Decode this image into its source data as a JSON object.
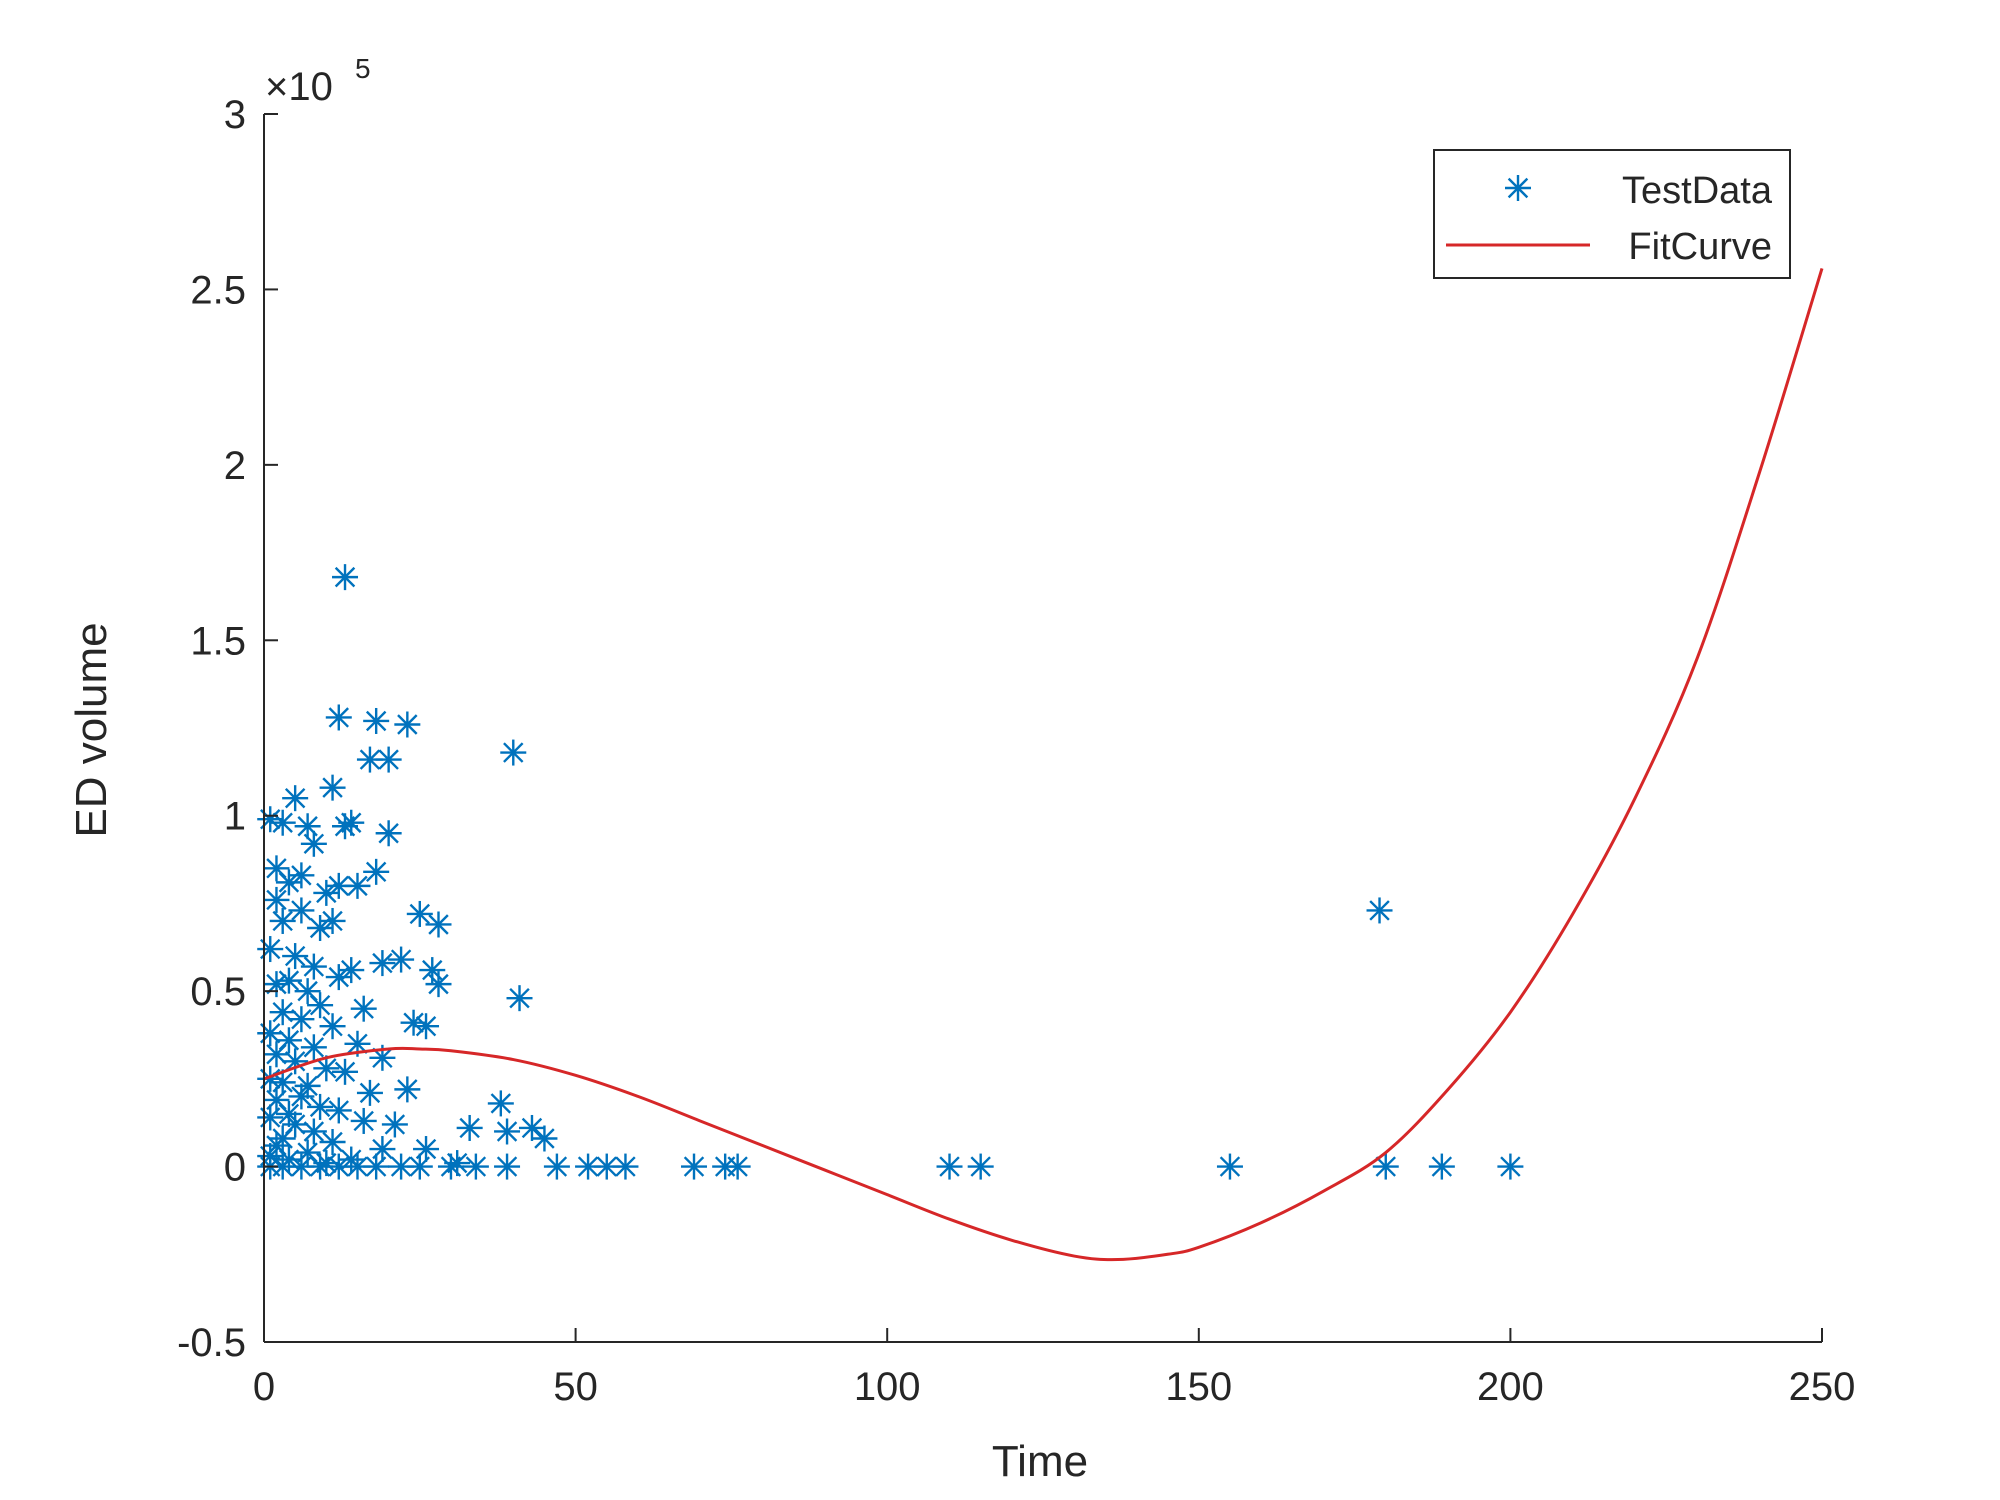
{
  "chart_data": {
    "type": "scatter",
    "title": "",
    "xlabel": "Time",
    "ylabel": "ED volume",
    "y_exponent_label": {
      "base": "×10",
      "exp": "5"
    },
    "xlim": [
      0,
      250
    ],
    "ylim": [
      -0.5,
      3
    ],
    "y_unit_multiplier": 100000,
    "grid": false,
    "legend": {
      "position": "top-right",
      "box": true
    },
    "x_ticks": [
      0,
      50,
      100,
      150,
      200,
      250
    ],
    "x_tick_labels": [
      "0",
      "50",
      "100",
      "150",
      "200",
      "250"
    ],
    "y_ticks": [
      -0.5,
      0,
      0.5,
      1,
      1.5,
      2,
      2.5,
      3
    ],
    "y_tick_labels": [
      "-0.5",
      "0",
      "0.5",
      "1",
      "1.5",
      "2",
      "2.5",
      "3"
    ],
    "series": [
      {
        "name": "TestData",
        "kind": "scatter",
        "marker": "asterisk",
        "color": "#0072bd",
        "points": [
          [
            13,
            1.68
          ],
          [
            12,
            1.28
          ],
          [
            18,
            1.27
          ],
          [
            23,
            1.26
          ],
          [
            40,
            1.18
          ],
          [
            17,
            1.16
          ],
          [
            20,
            1.16
          ],
          [
            11,
            1.08
          ],
          [
            5,
            1.05
          ],
          [
            1,
            0.99
          ],
          [
            3,
            0.98
          ],
          [
            7,
            0.97
          ],
          [
            14,
            0.98
          ],
          [
            13,
            0.97
          ],
          [
            20,
            0.95
          ],
          [
            8,
            0.92
          ],
          [
            2,
            0.85
          ],
          [
            18,
            0.84
          ],
          [
            6,
            0.83
          ],
          [
            4,
            0.81
          ],
          [
            12,
            0.8
          ],
          [
            15,
            0.8
          ],
          [
            10,
            0.78
          ],
          [
            2,
            0.76
          ],
          [
            6,
            0.73
          ],
          [
            25,
            0.72
          ],
          [
            28,
            0.69
          ],
          [
            11,
            0.7
          ],
          [
            9,
            0.68
          ],
          [
            3,
            0.7
          ],
          [
            1,
            0.62
          ],
          [
            5,
            0.6
          ],
          [
            8,
            0.57
          ],
          [
            14,
            0.56
          ],
          [
            19,
            0.58
          ],
          [
            22,
            0.59
          ],
          [
            27,
            0.56
          ],
          [
            12,
            0.54
          ],
          [
            4,
            0.53
          ],
          [
            2,
            0.52
          ],
          [
            7,
            0.5
          ],
          [
            28,
            0.52
          ],
          [
            41,
            0.48
          ],
          [
            9,
            0.46
          ],
          [
            16,
            0.45
          ],
          [
            3,
            0.44
          ],
          [
            6,
            0.42
          ],
          [
            24,
            0.41
          ],
          [
            26,
            0.4
          ],
          [
            11,
            0.4
          ],
          [
            1,
            0.38
          ],
          [
            4,
            0.36
          ],
          [
            15,
            0.35
          ],
          [
            8,
            0.34
          ],
          [
            2,
            0.32
          ],
          [
            19,
            0.31
          ],
          [
            5,
            0.3
          ],
          [
            10,
            0.28
          ],
          [
            13,
            0.27
          ],
          [
            1,
            0.25
          ],
          [
            3,
            0.24
          ],
          [
            7,
            0.23
          ],
          [
            23,
            0.22
          ],
          [
            17,
            0.21
          ],
          [
            6,
            0.2
          ],
          [
            2,
            0.19
          ],
          [
            38,
            0.18
          ],
          [
            9,
            0.17
          ],
          [
            12,
            0.16
          ],
          [
            4,
            0.15
          ],
          [
            1,
            0.14
          ],
          [
            16,
            0.13
          ],
          [
            21,
            0.12
          ],
          [
            5,
            0.12
          ],
          [
            33,
            0.11
          ],
          [
            43,
            0.11
          ],
          [
            39,
            0.1
          ],
          [
            8,
            0.1
          ],
          [
            45,
            0.08
          ],
          [
            3,
            0.08
          ],
          [
            11,
            0.07
          ],
          [
            2,
            0.06
          ],
          [
            26,
            0.05
          ],
          [
            19,
            0.05
          ],
          [
            7,
            0.04
          ],
          [
            1,
            0.03
          ],
          [
            4,
            0.02
          ],
          [
            14,
            0.02
          ],
          [
            31,
            0.01
          ],
          [
            10,
            0.01
          ],
          [
            1,
            0.0
          ],
          [
            3,
            0.0
          ],
          [
            6,
            0.0
          ],
          [
            9,
            0.0
          ],
          [
            12,
            0.0
          ],
          [
            15,
            0.0
          ],
          [
            18,
            0.0
          ],
          [
            22,
            0.0
          ],
          [
            25,
            0.0
          ],
          [
            30,
            0.0
          ],
          [
            34,
            0.0
          ],
          [
            39,
            0.0
          ],
          [
            47,
            0.0
          ],
          [
            52,
            0.0
          ],
          [
            55,
            0.0
          ],
          [
            58,
            0.0
          ],
          [
            69,
            0.0
          ],
          [
            74,
            0.0
          ],
          [
            76,
            0.0
          ],
          [
            110,
            0.0
          ],
          [
            115,
            0.0
          ],
          [
            155,
            0.0
          ],
          [
            180,
            0.0
          ],
          [
            189,
            0.0
          ],
          [
            200,
            0.0
          ],
          [
            179,
            0.73
          ]
        ]
      },
      {
        "name": "FitCurve",
        "kind": "line",
        "color": "#d62728",
        "x": [
          0,
          10,
          20,
          25,
          30,
          40,
          50,
          60,
          70,
          80,
          90,
          100,
          110,
          120,
          130,
          137,
          145,
          150,
          160,
          170,
          180,
          190,
          200,
          210,
          220,
          230,
          240,
          250
        ],
        "y": [
          0.25,
          0.31,
          0.335,
          0.335,
          0.33,
          0.305,
          0.26,
          0.2,
          0.13,
          0.06,
          -0.01,
          -0.08,
          -0.15,
          -0.21,
          -0.255,
          -0.265,
          -0.25,
          -0.23,
          -0.16,
          -0.07,
          0.04,
          0.22,
          0.44,
          0.72,
          1.05,
          1.45,
          1.98,
          2.56
        ]
      }
    ]
  }
}
